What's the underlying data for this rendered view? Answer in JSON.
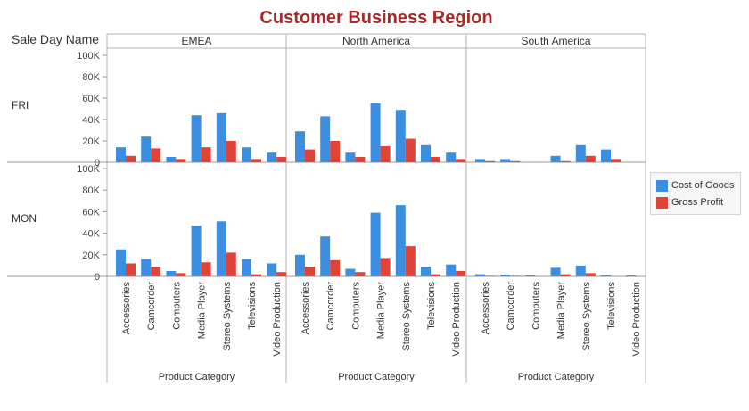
{
  "title": "Customer Business Region",
  "row_dimension_label": "Sale Day Name",
  "x_axis_label": "Product Category",
  "legend": [
    {
      "name": "Cost of Goods",
      "color": "#3b8ee0"
    },
    {
      "name": "Gross Profit",
      "color": "#e0433a"
    }
  ],
  "chart_data": {
    "type": "bar",
    "columns": [
      "EMEA",
      "North America",
      "South America"
    ],
    "rows": [
      "FRI",
      "MON"
    ],
    "categories": [
      "Accessories",
      "Camcorder",
      "Computers",
      "Media Player",
      "Stereo Systems",
      "Televisions",
      "Video Production"
    ],
    "y_ticks": [
      "0",
      "20K",
      "40K",
      "60K",
      "80K",
      "100K"
    ],
    "ylim": [
      0,
      100000
    ],
    "xlabel": "Product Category",
    "grid": false,
    "legend_position": "right",
    "panels": [
      {
        "row": "FRI",
        "column": "EMEA",
        "series": [
          {
            "name": "Cost of Goods",
            "values": [
              14000,
              24000,
              5000,
              44000,
              46000,
              14000,
              9000
            ]
          },
          {
            "name": "Gross Profit",
            "values": [
              6000,
              13000,
              3000,
              14000,
              20000,
              3000,
              5000
            ]
          }
        ]
      },
      {
        "row": "FRI",
        "column": "North America",
        "series": [
          {
            "name": "Cost of Goods",
            "values": [
              29000,
              43000,
              9000,
              55000,
              49000,
              16000,
              9000
            ]
          },
          {
            "name": "Gross Profit",
            "values": [
              12000,
              20000,
              5000,
              15000,
              22000,
              5000,
              3000
            ]
          }
        ]
      },
      {
        "row": "FRI",
        "column": "South America",
        "series": [
          {
            "name": "Cost of Goods",
            "values": [
              3000,
              3000,
              0,
              6000,
              16000,
              12000,
              0
            ]
          },
          {
            "name": "Gross Profit",
            "values": [
              1000,
              1000,
              0,
              1000,
              6000,
              3000,
              0
            ]
          }
        ]
      },
      {
        "row": "MON",
        "column": "EMEA",
        "series": [
          {
            "name": "Cost of Goods",
            "values": [
              25000,
              16000,
              5000,
              47000,
              51000,
              16000,
              12000
            ]
          },
          {
            "name": "Gross Profit",
            "values": [
              12000,
              9000,
              3000,
              13000,
              22000,
              2000,
              4000
            ]
          }
        ]
      },
      {
        "row": "MON",
        "column": "North America",
        "series": [
          {
            "name": "Cost of Goods",
            "values": [
              20000,
              37000,
              7000,
              59000,
              66000,
              9000,
              11000
            ]
          },
          {
            "name": "Gross Profit",
            "values": [
              9000,
              15000,
              4000,
              17000,
              28000,
              2000,
              5000
            ]
          }
        ]
      },
      {
        "row": "MON",
        "column": "South America",
        "series": [
          {
            "name": "Cost of Goods",
            "values": [
              2000,
              1500,
              1000,
              8000,
              10000,
              1000,
              1000
            ]
          },
          {
            "name": "Gross Profit",
            "values": [
              500,
              500,
              0,
              2000,
              3000,
              0,
              0
            ]
          }
        ]
      }
    ]
  }
}
